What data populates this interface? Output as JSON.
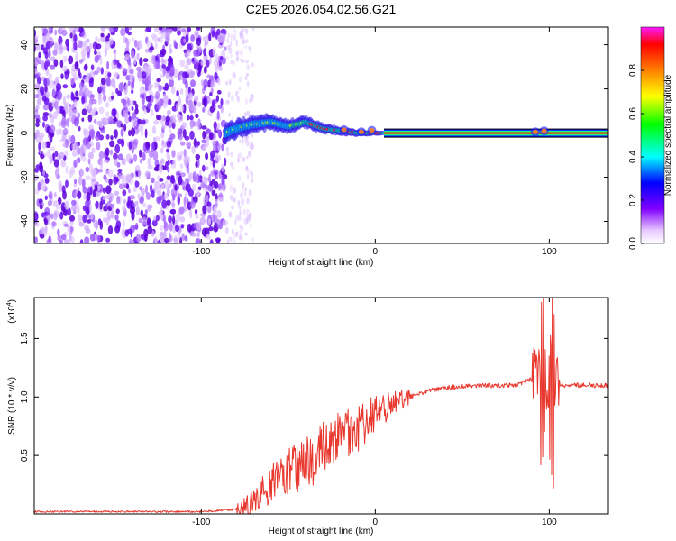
{
  "chart_data": [
    {
      "type": "heatmap",
      "title": "C2E5.2026.054.02.56.G21",
      "xlabel": "Height of straight line (km)",
      "ylabel": "Frequency (Hz)",
      "xlim": [
        -196,
        134
      ],
      "ylim": [
        -50,
        48
      ],
      "x_ticks": [
        -100,
        0,
        100
      ],
      "x_tick_labels": [
        "-100",
        "0",
        "100"
      ],
      "y_ticks": [
        -40,
        -20,
        0,
        20,
        40
      ],
      "y_tick_labels": [
        "-40",
        "-20",
        "0",
        "20",
        "40"
      ],
      "colorbar": {
        "label": "Normalized spectral amplitude",
        "range": [
          0,
          1
        ],
        "ticks": [
          0,
          0.2,
          0.4,
          0.6,
          0.8
        ],
        "tick_labels": [
          "0.0",
          "0.2",
          "0.4",
          "0.6",
          "0.8"
        ]
      },
      "features": {
        "noise_region_x": [
          -196,
          -86
        ],
        "noise_fade_x": [
          -86,
          -70
        ],
        "signal_onset_x": -86,
        "signal_track": [
          {
            "x": -86,
            "y": 0
          },
          {
            "x": -80,
            "y": 2
          },
          {
            "x": -70,
            "y": 4
          },
          {
            "x": -60,
            "y": 5
          },
          {
            "x": -50,
            "y": 3
          },
          {
            "x": -40,
            "y": 5
          },
          {
            "x": -30,
            "y": 2
          },
          {
            "x": -20,
            "y": 1
          },
          {
            "x": -10,
            "y": 0
          },
          {
            "x": 0,
            "y": 0
          },
          {
            "x": 134,
            "y": 0
          }
        ],
        "steady_band_x": [
          5,
          134
        ]
      }
    },
    {
      "type": "line",
      "xlabel": "Height of straight line (km)",
      "ylabel": "SNR (10 * v/v)",
      "y_multiplier_label": "(x10",
      "y_multiplier_exp": "4",
      "y_multiplier_close": ")",
      "xlim": [
        -196,
        134
      ],
      "ylim": [
        0,
        1.85
      ],
      "x_ticks": [
        -100,
        0,
        100
      ],
      "x_tick_labels": [
        "-100",
        "0",
        "100"
      ],
      "y_ticks": [
        0.5,
        1.0,
        1.5
      ],
      "y_tick_labels": [
        "0.5",
        "1.0",
        "1.5"
      ],
      "color": "#e8382e",
      "series": [
        {
          "name": "SNR",
          "x": [
            -196,
            -150,
            -100,
            -80,
            -70,
            -60,
            -50,
            -40,
            -30,
            -20,
            -10,
            0,
            10,
            20,
            30,
            40,
            60,
            80,
            90,
            95,
            98,
            100,
            102,
            105,
            110,
            120,
            134
          ],
          "values": [
            0.02,
            0.02,
            0.02,
            0.04,
            0.1,
            0.25,
            0.35,
            0.42,
            0.55,
            0.65,
            0.72,
            0.85,
            0.95,
            1.0,
            1.05,
            1.08,
            1.1,
            1.1,
            1.15,
            1.3,
            0.4,
            1.85,
            1.1,
            1.1,
            1.1,
            1.1,
            1.1
          ]
        }
      ]
    }
  ]
}
